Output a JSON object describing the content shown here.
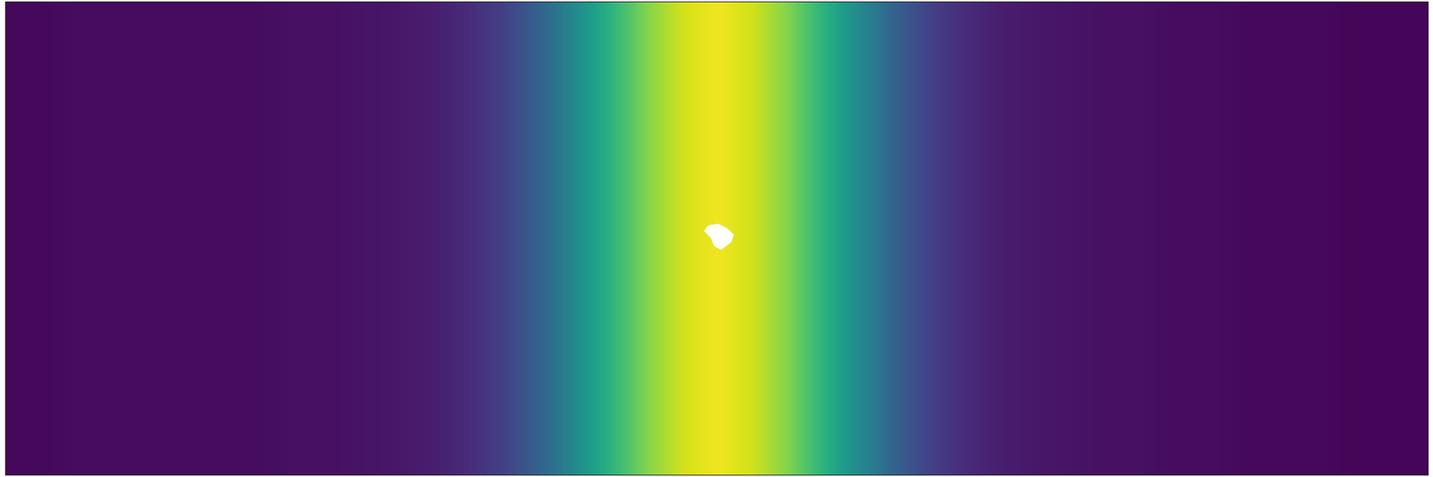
{
  "chart_data": {
    "type": "heatmap",
    "x": [
      0,
      0.025,
      0.05,
      0.075,
      0.1,
      0.125,
      0.15,
      0.175,
      0.2,
      0.225,
      0.25,
      0.275,
      0.3,
      0.325,
      0.35,
      0.375,
      0.4,
      0.425,
      0.45,
      0.475,
      0.5,
      0.525,
      0.55,
      0.575,
      0.6,
      0.625,
      0.65,
      0.675,
      0.7,
      0.725,
      0.75,
      0.775,
      0.8,
      0.825,
      0.85,
      0.875,
      0.9,
      0.925,
      0.95,
      0.975,
      1
    ],
    "y": [
      0,
      1
    ],
    "z": [
      [
        0.02,
        0.02,
        0.03,
        0.03,
        0.03,
        0.03,
        0.03,
        0.03,
        0.04,
        0.04,
        0.05,
        0.06,
        0.08,
        0.12,
        0.19,
        0.31,
        0.47,
        0.64,
        0.81,
        0.93,
        0.98,
        0.93,
        0.81,
        0.64,
        0.47,
        0.31,
        0.19,
        0.12,
        0.08,
        0.06,
        0.05,
        0.04,
        0.04,
        0.03,
        0.03,
        0.02,
        0.02,
        0.02,
        0.01,
        0.01,
        0.01
      ],
      [
        0.02,
        0.02,
        0.03,
        0.03,
        0.03,
        0.03,
        0.03,
        0.03,
        0.04,
        0.04,
        0.05,
        0.06,
        0.08,
        0.12,
        0.19,
        0.31,
        0.47,
        0.64,
        0.81,
        0.93,
        0.98,
        0.93,
        0.81,
        0.64,
        0.47,
        0.31,
        0.19,
        0.12,
        0.08,
        0.06,
        0.05,
        0.04,
        0.04,
        0.03,
        0.03,
        0.02,
        0.02,
        0.02,
        0.01,
        0.01,
        0.01
      ]
    ],
    "zlim": [
      0,
      1
    ],
    "xlim": [
      0,
      1
    ],
    "ylim": [
      0,
      1
    ],
    "color": "Viridis",
    "grid": false,
    "tick_labels": false
  }
}
